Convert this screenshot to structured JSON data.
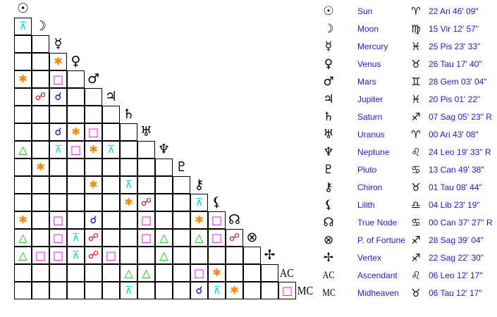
{
  "aspect_colors": {
    "conjunction": "#0000cc",
    "opposition": "#ee0000",
    "trine": "#00cc00",
    "square": "#ee00ee",
    "sextile": "#ff8800",
    "quincunx": "#00dddd"
  },
  "aspect_glyphs": {
    "conjunction": "☌",
    "opposition": "☍",
    "trine": "△",
    "square": "□",
    "sextile": "✱",
    "quincunx": "⊼"
  },
  "planets": [
    {
      "name": "Sun",
      "glyph": "☉",
      "sign_glyph": "♈",
      "position": "22 Ari 46' 09\""
    },
    {
      "name": "Moon",
      "glyph": "☽",
      "sign_glyph": "♍",
      "position": "15 Vir 12' 57\""
    },
    {
      "name": "Mercury",
      "glyph": "☿",
      "sign_glyph": "♓",
      "position": "25 Pis 23' 33\""
    },
    {
      "name": "Venus",
      "glyph": "♀",
      "sign_glyph": "♉",
      "position": "26 Tau 17' 40\""
    },
    {
      "name": "Mars",
      "glyph": "♂",
      "sign_glyph": "♊",
      "position": "28 Gem 03' 04\""
    },
    {
      "name": "Jupiter",
      "glyph": "♃",
      "sign_glyph": "♓",
      "position": "20 Pis 01' 22\""
    },
    {
      "name": "Saturn",
      "glyph": "♄",
      "sign_glyph": "♐",
      "position": "07 Sag 05' 23\" R"
    },
    {
      "name": "Uranus",
      "glyph": "♅",
      "sign_glyph": "♈",
      "position": "00 Ari 43' 08\""
    },
    {
      "name": "Neptune",
      "glyph": "♆",
      "sign_glyph": "♌",
      "position": "24 Leo 19' 33\" R"
    },
    {
      "name": "Pluto",
      "glyph": "♇",
      "sign_glyph": "♋",
      "position": "13 Can 49' 38\""
    },
    {
      "name": "Chiron",
      "glyph": "⚷",
      "sign_glyph": "♉",
      "position": "01 Tau 08' 44\""
    },
    {
      "name": "Lilith",
      "glyph": "⚸",
      "sign_glyph": "♎",
      "position": "04 Lib 23' 19\""
    },
    {
      "name": "True Node",
      "glyph": "☊",
      "sign_glyph": "♋",
      "position": "00 Can 37' 27\" R"
    },
    {
      "name": "P. of Fortune",
      "glyph": "⊗",
      "sign_glyph": "♐",
      "position": "28 Sag 39' 04\""
    },
    {
      "name": "Vertex",
      "glyph": "✢",
      "sign_glyph": "♐",
      "position": "22 Sag 22' 30\""
    },
    {
      "name": "Ascendant",
      "glyph": "AC",
      "sign_glyph": "♌",
      "position": "06 Leo 12' 17\""
    },
    {
      "name": "Midheaven",
      "glyph": "MC",
      "sign_glyph": "♉",
      "position": "06 Tau 12' 17\""
    }
  ],
  "aspects": [
    [
      1,
      0,
      "quincunx"
    ],
    [
      3,
      2,
      "sextile"
    ],
    [
      4,
      0,
      "sextile"
    ],
    [
      4,
      2,
      "square"
    ],
    [
      5,
      1,
      "opposition"
    ],
    [
      5,
      2,
      "conjunction"
    ],
    [
      7,
      2,
      "conjunction"
    ],
    [
      7,
      3,
      "sextile"
    ],
    [
      7,
      4,
      "square"
    ],
    [
      8,
      0,
      "trine"
    ],
    [
      8,
      2,
      "quincunx"
    ],
    [
      8,
      3,
      "square"
    ],
    [
      8,
      4,
      "sextile"
    ],
    [
      8,
      5,
      "quincunx"
    ],
    [
      9,
      1,
      "sextile"
    ],
    [
      10,
      4,
      "sextile"
    ],
    [
      10,
      6,
      "quincunx"
    ],
    [
      11,
      6,
      "sextile"
    ],
    [
      11,
      7,
      "opposition"
    ],
    [
      11,
      10,
      "quincunx"
    ],
    [
      12,
      0,
      "sextile"
    ],
    [
      12,
      2,
      "square"
    ],
    [
      12,
      4,
      "conjunction"
    ],
    [
      12,
      7,
      "square"
    ],
    [
      12,
      10,
      "sextile"
    ],
    [
      12,
      11,
      "square"
    ],
    [
      13,
      0,
      "trine"
    ],
    [
      13,
      2,
      "square"
    ],
    [
      13,
      3,
      "quincunx"
    ],
    [
      13,
      4,
      "opposition"
    ],
    [
      13,
      7,
      "square"
    ],
    [
      13,
      8,
      "trine"
    ],
    [
      13,
      10,
      "trine"
    ],
    [
      13,
      11,
      "square"
    ],
    [
      13,
      12,
      "opposition"
    ],
    [
      14,
      0,
      "trine"
    ],
    [
      14,
      1,
      "square"
    ],
    [
      14,
      2,
      "square"
    ],
    [
      14,
      3,
      "quincunx"
    ],
    [
      14,
      4,
      "opposition"
    ],
    [
      14,
      5,
      "square"
    ],
    [
      14,
      8,
      "trine"
    ],
    [
      15,
      6,
      "trine"
    ],
    [
      15,
      7,
      "trine"
    ],
    [
      15,
      10,
      "square"
    ],
    [
      15,
      11,
      "sextile"
    ],
    [
      16,
      6,
      "quincunx"
    ],
    [
      16,
      10,
      "conjunction"
    ],
    [
      16,
      11,
      "quincunx"
    ],
    [
      16,
      12,
      "sextile"
    ],
    [
      16,
      15,
      "square"
    ]
  ]
}
